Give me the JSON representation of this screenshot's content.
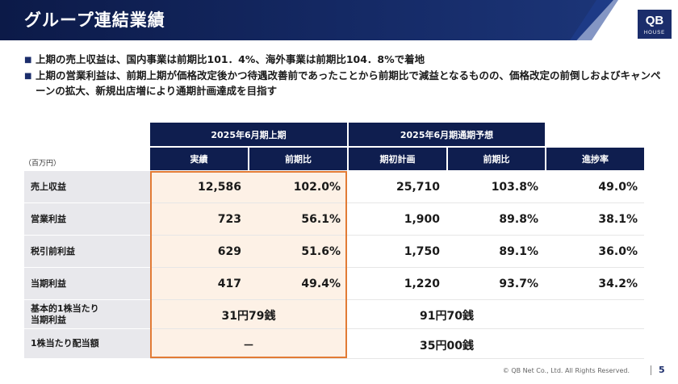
{
  "header": {
    "title": "グループ連結業績"
  },
  "logo": {
    "main": "QB",
    "sub": "HOUSE"
  },
  "bullets": [
    "上期の売上収益は、国内事業は前期比101．4%、海外事業は前期比104．8%で着地",
    "上期の営業利益は、前期上期が価格改定後かつ待遇改善前であったことから前期比で減益となるものの、価格改定の前倒しおよびキャンペーンの拡大、新規出店増により通期計画達成を目指す"
  ],
  "bullet_mark": "■",
  "table": {
    "unit": "（百万円）",
    "group1": "2025年6月期上期",
    "group2": "2025年6月期通期予想",
    "columns": [
      "実績",
      "前期比",
      "期初計画",
      "前期比",
      "進捗率"
    ],
    "rows": [
      {
        "label": "売上収益",
        "values": [
          "12,586",
          "102.0%",
          "25,710",
          "103.8%",
          "49.0%"
        ]
      },
      {
        "label": "営業利益",
        "values": [
          "723",
          "56.1%",
          "1,900",
          "89.8%",
          "38.1%"
        ]
      },
      {
        "label": "税引前利益",
        "values": [
          "629",
          "51.6%",
          "1,750",
          "89.1%",
          "36.0%"
        ]
      },
      {
        "label": "当期利益",
        "values": [
          "417",
          "49.4%",
          "1,220",
          "93.7%",
          "34.2%"
        ]
      }
    ],
    "eps_row": {
      "label": "基本的1株当たり\n当期利益",
      "actual": "31円79銭",
      "plan": "91円70銭"
    },
    "dps_row": {
      "label": "1株当たり配当額",
      "actual": "－",
      "plan": "35円00銭"
    }
  },
  "footer": {
    "copyright": "© QB Net Co., Ltd. All Rights Reserved.",
    "page": "5"
  }
}
